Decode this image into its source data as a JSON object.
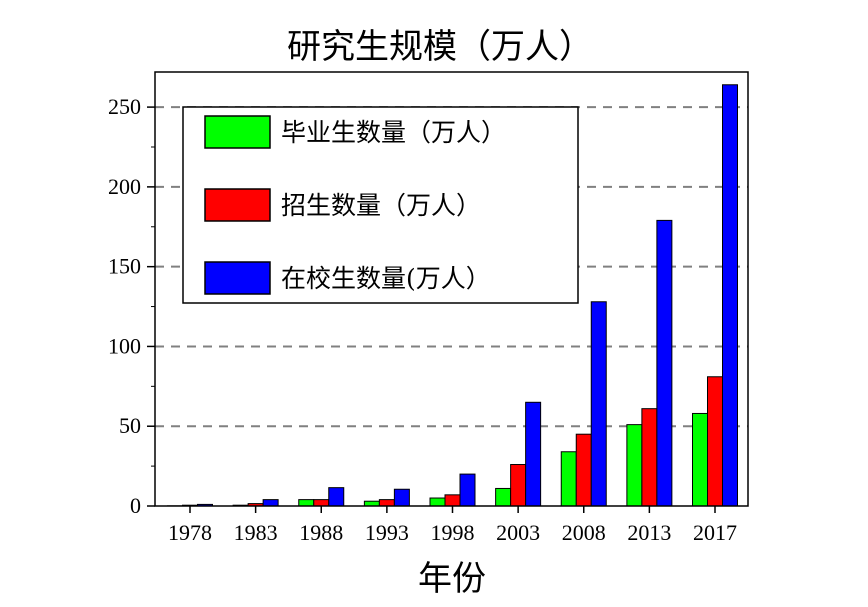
{
  "chart_data": {
    "type": "bar",
    "title": "研究生规模（万人）",
    "xlabel": "年份",
    "ylabel": "",
    "categories": [
      "1978",
      "1983",
      "1988",
      "1993",
      "1998",
      "2003",
      "2008",
      "2013",
      "2017"
    ],
    "series": [
      {
        "name": "毕业生数量（万人）",
        "color": "#00ff00",
        "values": [
          0.1,
          0.5,
          4,
          3,
          5,
          11,
          34,
          51,
          58
        ]
      },
      {
        "name": "招生数量（万人）",
        "color": "#ff0000",
        "values": [
          0.5,
          1.5,
          4,
          4,
          7,
          26,
          45,
          61,
          81
        ]
      },
      {
        "name": "在校生数量(万人）",
        "color": "#0000ff",
        "values": [
          1,
          4,
          11.5,
          10.5,
          20,
          65,
          128,
          179,
          264
        ]
      }
    ],
    "ylim": [
      0,
      272
    ],
    "yticks": [
      0,
      50,
      100,
      150,
      200,
      250
    ],
    "grid": "horizontal-dashed",
    "legend_position": "top-left"
  }
}
